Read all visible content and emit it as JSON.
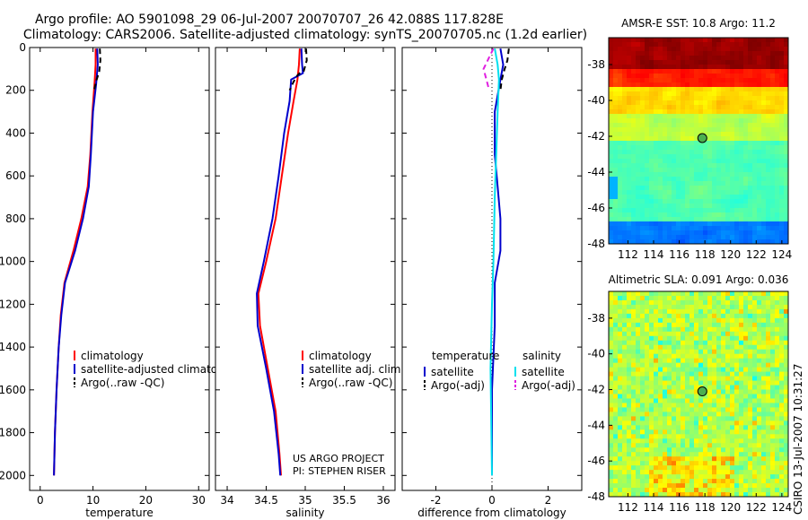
{
  "title_line1": "Argo profile: AO 5901098_29 06-Jul-2007 20070707_26 42.088S 117.828E",
  "title_line2": "Climatology: CARS2006. Satellite-adjusted climatology: synTS_20070705.nc (1.2d earlier)",
  "sst_title": "AMSR-E SST: 10.8 Argo: 11.2",
  "sla_title": "Altimetric SLA: 0.091 Argo: 0.036",
  "credit_side": "CSIRO 13-Jul-2007 10:31:27",
  "project_line1": "US ARGO PROJECT",
  "project_line2": "PI: STEPHEN RISER",
  "colors": {
    "climatology": "#ff0000",
    "satellite": "#0000cc",
    "argo": "#000000",
    "argo_sal": "#e020e0",
    "sat_sal": "#00e0ee"
  },
  "chart_data": [
    {
      "type": "line",
      "id": "temperature",
      "xlabel": "temperature",
      "ylabel": "",
      "xlim": [
        -2,
        32
      ],
      "ylim": [
        2070,
        0
      ],
      "xticks": [
        "0",
        "10",
        "20",
        "30"
      ],
      "yticks": [
        "0",
        "200",
        "400",
        "600",
        "800",
        "1000",
        "1200",
        "1400",
        "1600",
        "1800",
        "2000"
      ],
      "legend": [
        "climatology",
        "satellite-adjusted climatology",
        "Argo(..raw -QC)"
      ],
      "series": [
        {
          "name": "climatology",
          "color": "#ff0000",
          "style": "solid",
          "points": [
            [
              10.5,
              5
            ],
            [
              10.5,
              80
            ],
            [
              10.3,
              160
            ],
            [
              9.9,
              300
            ],
            [
              9.5,
              500
            ],
            [
              9.0,
              650
            ],
            [
              7.8,
              800
            ],
            [
              6.3,
              950
            ],
            [
              4.6,
              1100
            ],
            [
              3.9,
              1250
            ],
            [
              3.5,
              1400
            ],
            [
              3.1,
              1600
            ],
            [
              2.8,
              1800
            ],
            [
              2.6,
              2000
            ]
          ]
        },
        {
          "name": "satellite-adjusted climatology",
          "color": "#0000cc",
          "style": "solid",
          "points": [
            [
              10.8,
              5
            ],
            [
              10.9,
              80
            ],
            [
              10.6,
              170
            ],
            [
              10.0,
              300
            ],
            [
              9.6,
              500
            ],
            [
              9.2,
              650
            ],
            [
              8.1,
              800
            ],
            [
              6.6,
              950
            ],
            [
              4.7,
              1100
            ],
            [
              4.0,
              1250
            ],
            [
              3.5,
              1400
            ],
            [
              3.1,
              1600
            ],
            [
              2.8,
              1800
            ],
            [
              2.6,
              2000
            ]
          ]
        },
        {
          "name": "Argo(..raw -QC)",
          "color": "#000000",
          "style": "dashed",
          "points": [
            [
              11.3,
              5
            ],
            [
              11.4,
              60
            ],
            [
              11.2,
              110
            ],
            [
              10.7,
              150
            ],
            [
              10.5,
              170
            ],
            [
              10.2,
              200
            ]
          ]
        }
      ]
    },
    {
      "type": "line",
      "id": "salinity",
      "xlabel": "salinity",
      "xlim": [
        33.85,
        36.15
      ],
      "ylim": [
        2070,
        0
      ],
      "xticks": [
        "34",
        "34.5",
        "35",
        "35.5",
        "36"
      ],
      "legend": [
        "climatology",
        "satellite adj. clim.",
        "Argo(..raw -QC)"
      ],
      "series": [
        {
          "name": "climatology",
          "color": "#ff0000",
          "style": "solid",
          "points": [
            [
              34.93,
              5
            ],
            [
              34.92,
              80
            ],
            [
              34.9,
              150
            ],
            [
              34.85,
              250
            ],
            [
              34.78,
              400
            ],
            [
              34.7,
              600
            ],
            [
              34.62,
              800
            ],
            [
              34.5,
              1000
            ],
            [
              34.4,
              1150
            ],
            [
              34.42,
              1300
            ],
            [
              34.52,
              1500
            ],
            [
              34.62,
              1700
            ],
            [
              34.67,
              1900
            ],
            [
              34.69,
              2000
            ]
          ]
        },
        {
          "name": "satellite adj. clim.",
          "color": "#0000cc",
          "style": "solid",
          "points": [
            [
              34.95,
              5
            ],
            [
              34.96,
              80
            ],
            [
              34.97,
              120
            ],
            [
              34.82,
              150
            ],
            [
              34.8,
              250
            ],
            [
              34.73,
              400
            ],
            [
              34.66,
              600
            ],
            [
              34.58,
              800
            ],
            [
              34.47,
              1000
            ],
            [
              34.38,
              1150
            ],
            [
              34.39,
              1300
            ],
            [
              34.5,
              1500
            ],
            [
              34.6,
              1700
            ],
            [
              34.66,
              1900
            ],
            [
              34.68,
              2000
            ]
          ]
        },
        {
          "name": "Argo(..raw -QC)",
          "color": "#000000",
          "style": "dashed",
          "points": [
            [
              35.01,
              5
            ],
            [
              35.02,
              60
            ],
            [
              34.98,
              110
            ],
            [
              34.93,
              120
            ],
            [
              34.9,
              130
            ],
            [
              34.85,
              160
            ],
            [
              34.8,
              200
            ]
          ]
        }
      ]
    },
    {
      "type": "line",
      "id": "difference",
      "xlabel": "difference from climatology",
      "xlim": [
        -3.2,
        3.2
      ],
      "ylim": [
        2070,
        0
      ],
      "xticks": [
        "-2",
        "0",
        "2"
      ],
      "legend_title_left": "temperature",
      "legend_title_right": "salinity",
      "legend": [
        "satellite",
        "Argo(-adj)",
        "satellite",
        "Argo(-adj)"
      ],
      "series": [
        {
          "name": "temperature satellite",
          "color": "#0000cc",
          "style": "solid",
          "points": [
            [
              0.3,
              5
            ],
            [
              0.4,
              80
            ],
            [
              0.3,
              150
            ],
            [
              0.1,
              300
            ],
            [
              0.1,
              500
            ],
            [
              0.2,
              650
            ],
            [
              0.3,
              800
            ],
            [
              0.3,
              950
            ],
            [
              0.1,
              1100
            ],
            [
              0.1,
              1300
            ],
            [
              0.0,
              1600
            ],
            [
              0.0,
              2000
            ]
          ]
        },
        {
          "name": "temperature Argo(-adj)",
          "color": "#000000",
          "style": "dashed",
          "points": [
            [
              0.6,
              5
            ],
            [
              0.55,
              60
            ],
            [
              0.45,
              100
            ],
            [
              0.35,
              150
            ],
            [
              0.3,
              200
            ]
          ]
        },
        {
          "name": "salinity satellite",
          "color": "#00e0ee",
          "style": "solid",
          "points": [
            [
              0.1,
              5
            ],
            [
              0.2,
              80
            ],
            [
              0.25,
              150
            ],
            [
              0.2,
              300
            ],
            [
              0.15,
              500
            ],
            [
              0.1,
              700
            ],
            [
              0.05,
              1000
            ],
            [
              0.0,
              1200
            ],
            [
              -0.05,
              1500
            ],
            [
              0.0,
              2000
            ]
          ]
        },
        {
          "name": "salinity Argo(-adj)",
          "color": "#e020e0",
          "style": "dashed",
          "points": [
            [
              0.05,
              5
            ],
            [
              -0.3,
              100
            ],
            [
              -0.2,
              150
            ],
            [
              -0.1,
              200
            ]
          ]
        }
      ]
    },
    {
      "type": "heatmap",
      "id": "sst_map",
      "title": "AMSR-E SST: 10.8 Argo: 11.2",
      "xlim": [
        110.5,
        124.5
      ],
      "ylim": [
        -48,
        -36.5
      ],
      "xticks": [
        "112",
        "114",
        "116",
        "118",
        "120",
        "122",
        "124"
      ],
      "yticks": [
        "-38",
        "-40",
        "-42",
        "-44",
        "-46",
        "-48"
      ],
      "argo_point": [
        117.8,
        -42.1
      ]
    },
    {
      "type": "heatmap",
      "id": "sla_map",
      "title": "Altimetric SLA: 0.091 Argo: 0.036",
      "xlim": [
        110.5,
        124.5
      ],
      "ylim": [
        -48,
        -36.5
      ],
      "xticks": [
        "112",
        "114",
        "116",
        "118",
        "120",
        "122",
        "124"
      ],
      "yticks": [
        "-38",
        "-40",
        "-42",
        "-44",
        "-46",
        "-48"
      ],
      "argo_point": [
        117.8,
        -42.1
      ]
    }
  ]
}
